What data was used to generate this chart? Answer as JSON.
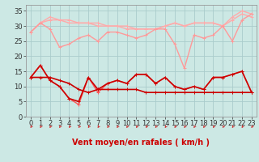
{
  "title": "",
  "xlabel": "Vent moyen/en rafales ( km/h )",
  "bg_color": "#cce8e4",
  "grid_color": "#aacccc",
  "xlim": [
    -0.5,
    23.5
  ],
  "ylim": [
    0,
    37
  ],
  "yticks": [
    0,
    5,
    10,
    15,
    20,
    25,
    30,
    35
  ],
  "xticks": [
    0,
    1,
    2,
    3,
    4,
    5,
    6,
    7,
    8,
    9,
    10,
    11,
    12,
    13,
    14,
    15,
    16,
    17,
    18,
    19,
    20,
    21,
    22,
    23
  ],
  "series": [
    {
      "name": "rafales_top1",
      "x": [
        0,
        1,
        2,
        3,
        4,
        5,
        6,
        7,
        8,
        9,
        10,
        11,
        12,
        13,
        14,
        15,
        16,
        17,
        18,
        19,
        20,
        21,
        22,
        23
      ],
      "y": [
        28,
        31,
        33,
        32,
        32,
        31,
        31,
        31,
        30,
        30,
        29,
        29,
        29,
        29,
        30,
        31,
        30,
        31,
        31,
        31,
        30,
        33,
        35,
        34
      ],
      "color": "#ffaaaa",
      "lw": 1.0,
      "marker": "+"
    },
    {
      "name": "rafales_top2",
      "x": [
        0,
        1,
        2,
        3,
        4,
        5,
        6,
        7,
        8,
        9,
        10,
        11,
        12,
        13,
        14,
        15,
        16,
        17,
        18,
        19,
        20,
        21,
        22,
        23
      ],
      "y": [
        28,
        31,
        32,
        32,
        31,
        31,
        31,
        30,
        30,
        30,
        30,
        29,
        29,
        29,
        30,
        31,
        30,
        31,
        31,
        31,
        30,
        32,
        34,
        33
      ],
      "color": "#ffaaaa",
      "lw": 1.0,
      "marker": "+"
    },
    {
      "name": "rafales_mid",
      "x": [
        0,
        1,
        2,
        3,
        4,
        5,
        6,
        7,
        8,
        9,
        10,
        11,
        12,
        13,
        14,
        15,
        16,
        17,
        18,
        19,
        20,
        21,
        22,
        23
      ],
      "y": [
        28,
        31,
        29,
        23,
        24,
        26,
        27,
        25,
        28,
        28,
        27,
        26,
        27,
        29,
        29,
        24,
        16,
        27,
        26,
        27,
        30,
        25,
        32,
        34
      ],
      "color": "#ff9999",
      "lw": 1.0,
      "marker": "+"
    },
    {
      "name": "vent_moy_medium",
      "x": [
        0,
        1,
        2,
        3,
        4,
        5,
        6,
        7,
        8,
        9,
        10,
        11,
        12,
        13,
        14,
        15,
        16,
        17,
        18,
        19,
        20,
        21,
        22,
        23
      ],
      "y": [
        13,
        17,
        12,
        10,
        6,
        4,
        13,
        8,
        11,
        12,
        11,
        14,
        14,
        11,
        13,
        10,
        9,
        10,
        9,
        13,
        13,
        14,
        15,
        8
      ],
      "color": "#ff5555",
      "lw": 1.0,
      "marker": "+"
    },
    {
      "name": "vent_moy_flat",
      "x": [
        0,
        1,
        2,
        3,
        4,
        5,
        6,
        7,
        8,
        9,
        10,
        11,
        12,
        13,
        14,
        15,
        16,
        17,
        18,
        19,
        20,
        21,
        22,
        23
      ],
      "y": [
        13,
        13,
        13,
        12,
        11,
        9,
        8,
        9,
        9,
        9,
        9,
        9,
        8,
        8,
        8,
        8,
        8,
        8,
        8,
        8,
        8,
        8,
        8,
        8
      ],
      "color": "#cc0000",
      "lw": 1.2,
      "marker": "+"
    },
    {
      "name": "rafales_dark",
      "x": [
        0,
        1,
        2,
        3,
        4,
        5,
        6,
        7,
        8,
        9,
        10,
        11,
        12,
        13,
        14,
        15,
        16,
        17,
        18,
        19,
        20,
        21,
        22,
        23
      ],
      "y": [
        13,
        17,
        12,
        10,
        6,
        5,
        13,
        9,
        11,
        12,
        11,
        14,
        14,
        11,
        13,
        10,
        9,
        10,
        9,
        13,
        13,
        14,
        15,
        8
      ],
      "color": "#cc0000",
      "lw": 1.2,
      "marker": "+"
    }
  ],
  "arrow_color": "#cc3333",
  "xlabel_color": "#cc0000",
  "xlabel_fontsize": 7,
  "tick_fontsize": 6
}
